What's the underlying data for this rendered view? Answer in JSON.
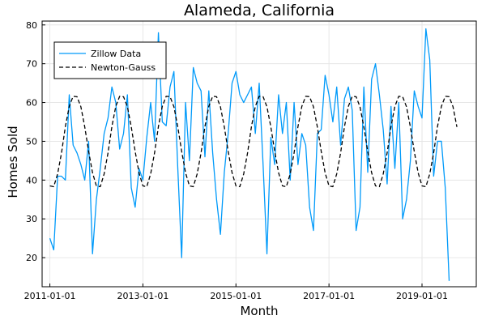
{
  "chart_data": {
    "type": "line",
    "title": "Alameda, California",
    "xlabel": "Month",
    "ylabel": "Homes Sold",
    "x_ticks": [
      "2011-01-01",
      "2013-01-01",
      "2015-01-01",
      "2017-01-01",
      "2019-01-01"
    ],
    "y_ticks": [
      20,
      30,
      40,
      50,
      60,
      70,
      80
    ],
    "xlim": [
      "2010-11-01",
      "2020-03-01"
    ],
    "ylim": [
      12.5,
      81
    ],
    "grid": true,
    "legend_position": "top-left",
    "series": [
      {
        "name": "Zillow Data",
        "color": "#009AFA",
        "style": "solid",
        "start": "2011-01",
        "values": [
          25,
          22,
          41,
          41,
          40,
          62,
          49,
          47,
          44,
          40,
          50,
          21,
          35,
          43,
          52,
          56,
          64,
          60,
          48,
          52,
          62,
          38,
          33,
          43,
          40,
          51,
          60,
          50,
          78,
          55,
          54,
          64,
          68,
          43,
          20,
          60,
          45,
          69,
          65,
          63,
          46,
          63,
          47,
          35,
          26,
          42,
          52,
          65,
          68,
          62,
          60,
          62,
          64,
          52,
          65,
          44,
          21,
          51,
          44,
          62,
          52,
          60,
          40,
          60,
          44,
          52,
          49,
          33,
          27,
          52,
          53,
          67,
          62,
          55,
          64,
          49,
          61,
          64,
          58,
          27,
          33,
          64,
          42,
          66,
          70,
          62,
          53,
          39,
          59,
          43,
          60,
          30,
          35,
          45,
          63,
          59,
          56,
          79,
          71,
          41,
          50,
          50,
          38,
          14
        ]
      },
      {
        "name": "Newton-Gauss",
        "color": "#000000",
        "style": "dashed",
        "start": "2011-01",
        "values": [
          38.5,
          38.3,
          41.6,
          47.0,
          53.8,
          59.0,
          61.6,
          61.5,
          58.9,
          53.7,
          47.4,
          41.9,
          38.5,
          38.3,
          41.6,
          47.0,
          53.8,
          59.0,
          61.6,
          61.5,
          58.9,
          53.7,
          47.4,
          41.9,
          38.5,
          38.3,
          41.6,
          47.0,
          53.8,
          59.0,
          61.6,
          61.5,
          58.9,
          53.7,
          47.4,
          41.9,
          38.5,
          38.3,
          41.6,
          47.0,
          53.8,
          59.0,
          61.6,
          61.5,
          58.9,
          53.7,
          47.4,
          41.9,
          38.5,
          38.3,
          41.6,
          47.0,
          53.8,
          59.0,
          61.6,
          61.5,
          58.9,
          53.7,
          47.4,
          41.9,
          38.5,
          38.3,
          41.6,
          47.0,
          53.8,
          59.0,
          61.6,
          61.5,
          58.9,
          53.7,
          47.4,
          41.9,
          38.5,
          38.3,
          41.6,
          47.0,
          53.8,
          59.0,
          61.6,
          61.5,
          58.9,
          53.7,
          47.4,
          41.9,
          38.5,
          38.3,
          41.6,
          47.0,
          53.8,
          59.0,
          61.6,
          61.5,
          58.9,
          53.7,
          47.4,
          41.9,
          38.5,
          38.3,
          41.6,
          47.0,
          53.8,
          59.0,
          61.6,
          61.5,
          58.9,
          53.7
        ]
      }
    ]
  }
}
